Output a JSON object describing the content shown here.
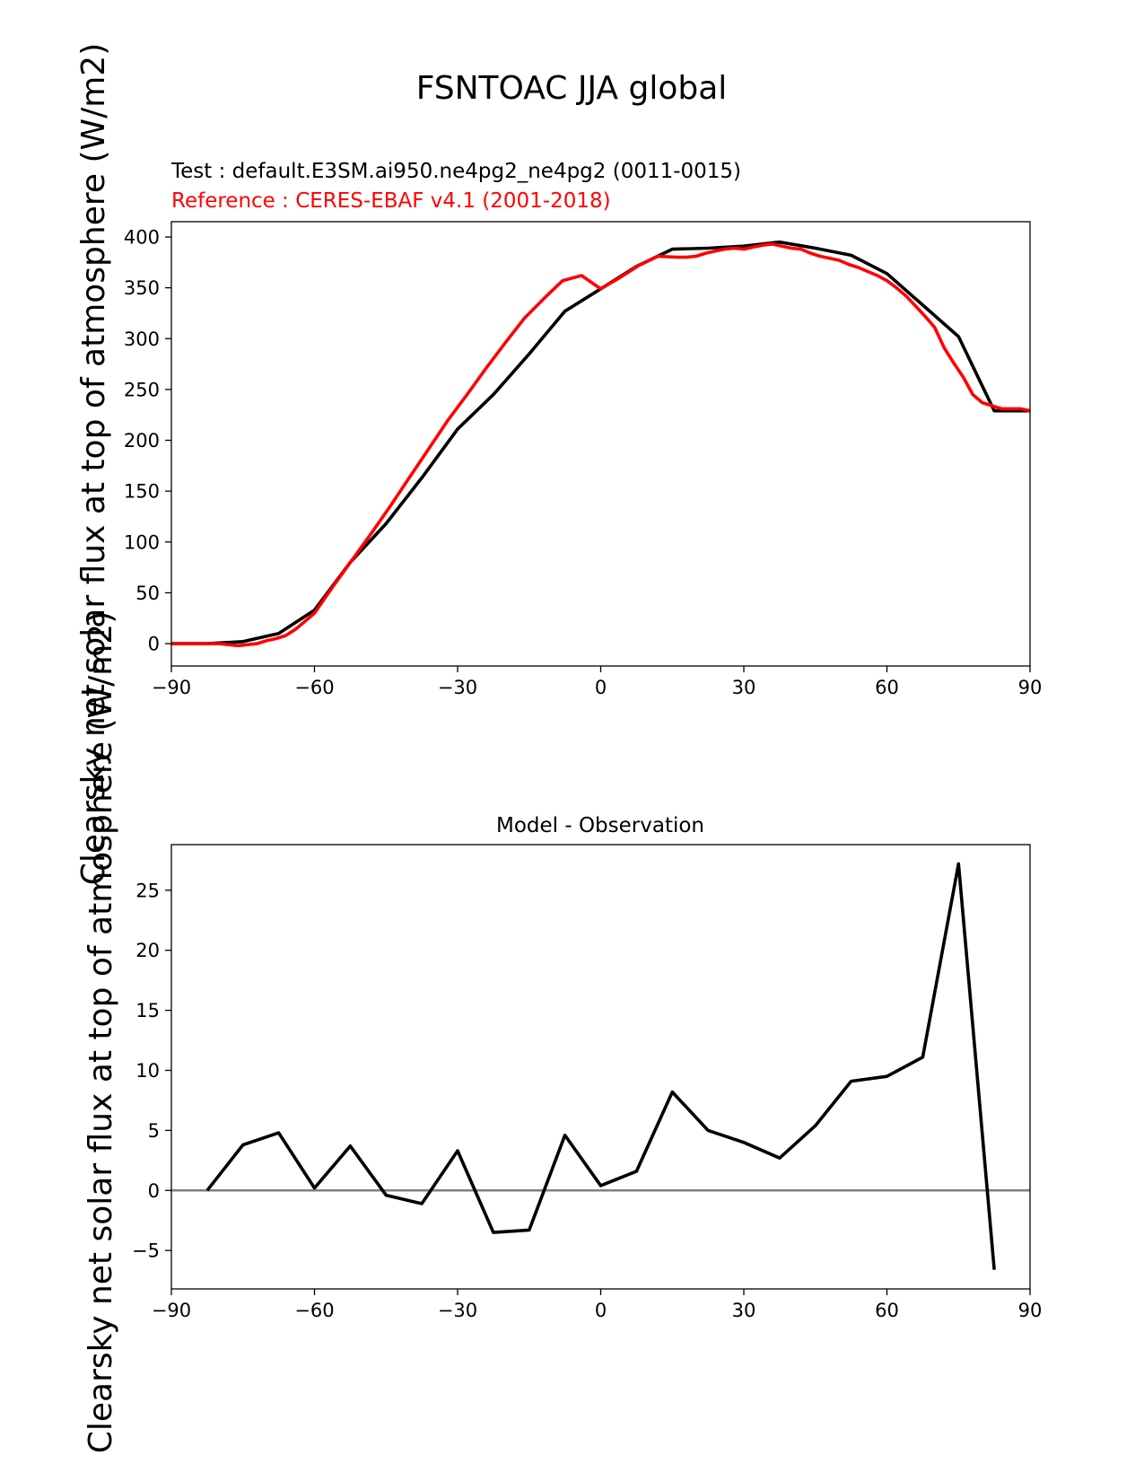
{
  "figure": {
    "title": "FSNTOAC JJA global"
  },
  "chart_data": [
    {
      "type": "line",
      "test_label": "Test : default.E3SM.ai950.ne4pg2_ne4pg2 (0011-0015)",
      "reference_label": "Reference : CERES-EBAF v4.1 (2001-2018)",
      "ylabel": "Clearsky net solar flux at top of atmosphere (W/m2)",
      "xlim": [
        -90,
        90
      ],
      "ylim": [
        -22,
        415
      ],
      "xticks": [
        -90,
        -60,
        -30,
        0,
        30,
        60,
        90
      ],
      "xtick_labels": [
        "−90",
        "−60",
        "−30",
        "0",
        "30",
        "60",
        "90"
      ],
      "yticks": [
        0,
        50,
        100,
        150,
        200,
        250,
        300,
        350,
        400
      ],
      "ytick_labels": [
        "0",
        "50",
        "100",
        "150",
        "200",
        "250",
        "300",
        "350",
        "400"
      ],
      "series": [
        {
          "name": "Test",
          "color": "#000000",
          "x": [
            -90,
            -82.5,
            -75,
            -67.5,
            -60,
            -52.5,
            -45,
            -37.5,
            -30,
            -22.5,
            -15,
            -7.5,
            0,
            7.5,
            15,
            22.5,
            30,
            37.5,
            45,
            52.5,
            60,
            67.5,
            75,
            82.5,
            90
          ],
          "y": [
            0,
            0,
            2,
            10,
            33,
            80,
            118,
            163,
            211,
            245,
            285,
            327,
            349,
            371,
            388,
            389,
            391,
            395,
            389,
            382,
            364,
            333,
            302,
            229,
            229
          ]
        },
        {
          "name": "Reference",
          "color": "#ff0000",
          "x": [
            -90,
            -85,
            -80,
            -78,
            -76,
            -74,
            -72,
            -70,
            -68,
            -66,
            -64,
            -62,
            -60,
            -56,
            -52,
            -48,
            -44,
            -40,
            -36,
            -32,
            -28,
            -24,
            -20,
            -16,
            -12,
            -8,
            -4,
            0,
            4,
            8,
            12,
            16,
            18,
            20,
            22,
            24,
            26,
            28,
            30,
            32,
            34,
            36,
            38,
            40,
            42,
            44,
            46,
            48,
            50,
            52,
            54,
            56,
            58,
            60,
            62,
            64,
            66,
            68,
            70,
            72,
            74,
            76,
            78,
            80,
            82,
            84,
            86,
            88,
            90
          ],
          "y": [
            0,
            0,
            0,
            -1,
            -2,
            -1,
            0,
            3,
            5,
            8,
            14,
            22,
            30,
            57,
            83,
            109,
            136,
            164,
            192,
            220,
            245,
            271,
            296,
            320,
            339,
            357,
            362,
            349,
            360,
            372,
            381,
            380,
            380,
            381,
            384,
            386,
            388,
            389,
            388,
            390,
            392,
            393,
            391,
            389,
            388,
            384,
            381,
            379,
            377,
            373,
            370,
            366,
            362,
            357,
            350,
            342,
            332,
            322,
            311,
            291,
            276,
            262,
            245,
            237,
            234,
            231,
            231,
            231,
            229
          ]
        }
      ]
    },
    {
      "type": "line",
      "title": "Model - Observation",
      "ylabel": "Clearsky net solar flux at top of atmosphere (W/m2)",
      "xlim": [
        -90,
        90
      ],
      "ylim": [
        -8.2,
        28.8
      ],
      "xticks": [
        -90,
        -60,
        -30,
        0,
        30,
        60,
        90
      ],
      "xtick_labels": [
        "−90",
        "−60",
        "−30",
        "0",
        "30",
        "60",
        "90"
      ],
      "yticks": [
        -5,
        0,
        5,
        10,
        15,
        20,
        25
      ],
      "ytick_labels": [
        "−5",
        "0",
        "5",
        "10",
        "15",
        "20",
        "25"
      ],
      "zero_line_color": "#808080",
      "series": [
        {
          "name": "Model - Observation",
          "color": "#000000",
          "x": [
            -82.5,
            -75,
            -67.5,
            -60,
            -52.5,
            -45,
            -37.5,
            -30,
            -22.5,
            -15,
            -7.5,
            0,
            7.5,
            15,
            22.5,
            30,
            37.5,
            45,
            52.5,
            60,
            67.5,
            75,
            82.5
          ],
          "y": [
            0.0,
            3.8,
            4.8,
            0.2,
            3.7,
            -0.4,
            -1.1,
            3.3,
            -3.5,
            -3.3,
            4.6,
            0.4,
            1.6,
            8.2,
            5.0,
            4.0,
            2.7,
            5.4,
            9.1,
            9.5,
            11.1,
            27.2,
            -6.6
          ]
        }
      ]
    }
  ]
}
